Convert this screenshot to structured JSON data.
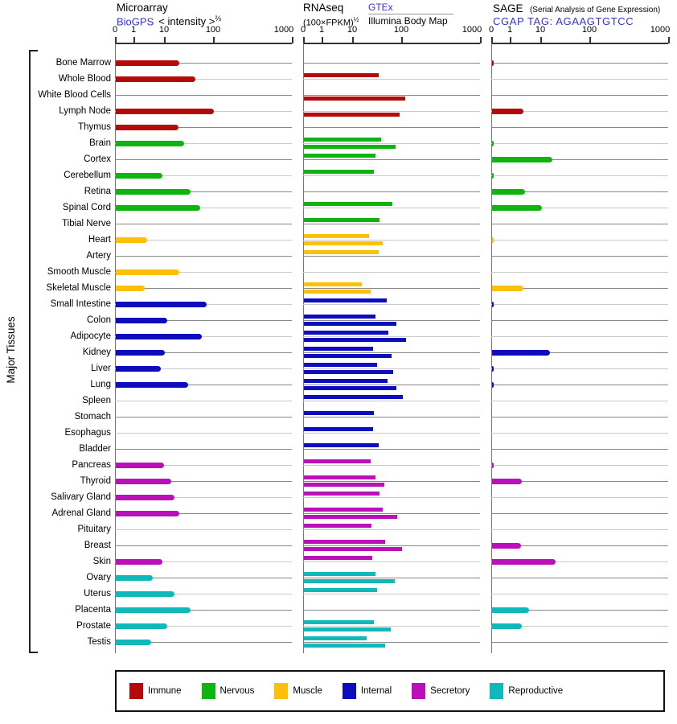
{
  "y_axis_label": "Major Tissues",
  "panels": [
    {
      "title": "Microarray",
      "link": "BioGPS",
      "subtitle": "< intensity >",
      "sup": "⅔"
    },
    {
      "title": "RNAseq",
      "formula": "(100×FPKM)",
      "sup": "½",
      "link": "GTEx",
      "link2": "Illumina Body Map"
    },
    {
      "title": "SAGE",
      "note": "(Serial Analysis of Gene Expression)",
      "link": "CGAP TAG: AGAAGTGTCC"
    }
  ],
  "legend": {
    "items": [
      {
        "label": "Immune",
        "category": "immune"
      },
      {
        "label": "Nervous",
        "category": "nervous"
      },
      {
        "label": "Muscle",
        "category": "muscle"
      },
      {
        "label": "Internal",
        "category": "internal"
      },
      {
        "label": "Secretory",
        "category": "secretory"
      },
      {
        "label": "Reproductive",
        "category": "reproductive"
      }
    ]
  },
  "chart_data": {
    "type": "bar",
    "orientation": "horizontal",
    "x_scale": "expanding log scale, tick anchors 0 / 1 / 10 / 100 / 1000",
    "x_ticks": [
      0,
      1,
      10,
      100,
      1000
    ],
    "x_tick_labels": [
      "0",
      "1",
      "10",
      "100",
      "1000"
    ],
    "panel_series": [
      "Microarray (BioGPS intensity)",
      "RNAseq GTEx",
      "RNAseq Illumina Body Map",
      "SAGE (CGAP tag AGAAGTGTCC)"
    ],
    "category_colors": {
      "immune": "#b40a0a",
      "nervous": "#10b410",
      "muscle": "#fdc008",
      "internal": "#0d0dbe",
      "secretory": "#ba10ba",
      "reproductive": "#10b9b9"
    },
    "rows": [
      {
        "tissue": "Bone Marrow",
        "category": "immune",
        "microarray": 20,
        "rnaseq_gtex": null,
        "rnaseq_illumina": null,
        "sage": 0.1
      },
      {
        "tissue": "Whole Blood",
        "category": "immune",
        "microarray": 42,
        "rnaseq_gtex": 34,
        "rnaseq_illumina": null,
        "sage": null
      },
      {
        "tissue": "White Blood Cells",
        "category": "immune",
        "microarray": null,
        "rnaseq_gtex": null,
        "rnaseq_illumina": 110,
        "sage": null
      },
      {
        "tissue": "Lymph Node",
        "category": "immune",
        "microarray": 100,
        "rnaseq_gtex": null,
        "rnaseq_illumina": 90,
        "sage": 2.7
      },
      {
        "tissue": "Thymus",
        "category": "immune",
        "microarray": 19,
        "rnaseq_gtex": null,
        "rnaseq_illumina": null,
        "sage": null
      },
      {
        "tissue": "Brain",
        "category": "nervous",
        "microarray": 25,
        "rnaseq_gtex": 38,
        "rnaseq_illumina": 74,
        "sage": 0.1
      },
      {
        "tissue": "Cortex",
        "category": "nervous",
        "microarray": null,
        "rnaseq_gtex": 29,
        "rnaseq_illumina": null,
        "sage": 17
      },
      {
        "tissue": "Cerebellum",
        "category": "nervous",
        "microarray": 8.5,
        "rnaseq_gtex": 27,
        "rnaseq_illumina": null,
        "sage": 0.1
      },
      {
        "tissue": "Retina",
        "category": "nervous",
        "microarray": 33,
        "rnaseq_gtex": null,
        "rnaseq_illumina": null,
        "sage": 2.9
      },
      {
        "tissue": "Spinal Cord",
        "category": "nervous",
        "microarray": 52,
        "rnaseq_gtex": 63,
        "rnaseq_illumina": null,
        "sage": 10.5
      },
      {
        "tissue": "Tibial Nerve",
        "category": "nervous",
        "microarray": null,
        "rnaseq_gtex": 35,
        "rnaseq_illumina": null,
        "sage": null
      },
      {
        "tissue": "Heart",
        "category": "muscle",
        "microarray": 2.6,
        "rnaseq_gtex": 21,
        "rnaseq_illumina": 41,
        "sage": 0.1
      },
      {
        "tissue": "Artery",
        "category": "muscle",
        "microarray": null,
        "rnaseq_gtex": 33,
        "rnaseq_illumina": null,
        "sage": null
      },
      {
        "tissue": "Smooth Muscle",
        "category": "muscle",
        "microarray": 20,
        "rnaseq_gtex": null,
        "rnaseq_illumina": null,
        "sage": null
      },
      {
        "tissue": "Skeletal Muscle",
        "category": "muscle",
        "microarray": 2.2,
        "rnaseq_gtex": 15,
        "rnaseq_illumina": 23,
        "sage": 2.7
      },
      {
        "tissue": "Small Intestine",
        "category": "internal",
        "microarray": 71,
        "rnaseq_gtex": 48,
        "rnaseq_illumina": null,
        "sage": 0.1
      },
      {
        "tissue": "Colon",
        "category": "internal",
        "microarray": 11,
        "rnaseq_gtex": 29,
        "rnaseq_illumina": 76,
        "sage": null
      },
      {
        "tissue": "Adipocyte",
        "category": "internal",
        "microarray": 57,
        "rnaseq_gtex": 52,
        "rnaseq_illumina": 112,
        "sage": null
      },
      {
        "tissue": "Kidney",
        "category": "internal",
        "microarray": 10,
        "rnaseq_gtex": 26,
        "rnaseq_illumina": 61,
        "sage": 15
      },
      {
        "tissue": "Liver",
        "category": "internal",
        "microarray": 7.5,
        "rnaseq_gtex": 31,
        "rnaseq_illumina": 66,
        "sage": 0.1
      },
      {
        "tissue": "Lung",
        "category": "internal",
        "microarray": 30,
        "rnaseq_gtex": 50,
        "rnaseq_illumina": 76,
        "sage": 0.1
      },
      {
        "tissue": "Spleen",
        "category": "internal",
        "microarray": null,
        "rnaseq_gtex": 102,
        "rnaseq_illumina": null,
        "sage": null
      },
      {
        "tissue": "Stomach",
        "category": "internal",
        "microarray": null,
        "rnaseq_gtex": 27,
        "rnaseq_illumina": null,
        "sage": null
      },
      {
        "tissue": "Esophagus",
        "category": "internal",
        "microarray": null,
        "rnaseq_gtex": 26,
        "rnaseq_illumina": null,
        "sage": null
      },
      {
        "tissue": "Bladder",
        "category": "internal",
        "microarray": null,
        "rnaseq_gtex": 33,
        "rnaseq_illumina": null,
        "sage": null
      },
      {
        "tissue": "Pancreas",
        "category": "secretory",
        "microarray": 9.5,
        "rnaseq_gtex": 23,
        "rnaseq_illumina": null,
        "sage": 0.1
      },
      {
        "tissue": "Thyroid",
        "category": "secretory",
        "microarray": 13.5,
        "rnaseq_gtex": 29,
        "rnaseq_illumina": 43,
        "sage": 2.3
      },
      {
        "tissue": "Salivary Gland",
        "category": "secretory",
        "microarray": 16,
        "rnaseq_gtex": 35,
        "rnaseq_illumina": null,
        "sage": null
      },
      {
        "tissue": "Adrenal Gland",
        "category": "secretory",
        "microarray": 20,
        "rnaseq_gtex": 41,
        "rnaseq_illumina": 79,
        "sage": null
      },
      {
        "tissue": "Pituitary",
        "category": "secretory",
        "microarray": null,
        "rnaseq_gtex": 24,
        "rnaseq_illumina": null,
        "sage": null
      },
      {
        "tissue": "Breast",
        "category": "secretory",
        "microarray": null,
        "rnaseq_gtex": 45,
        "rnaseq_illumina": 100,
        "sage": 2.2
      },
      {
        "tissue": "Skin",
        "category": "secretory",
        "microarray": 8.5,
        "rnaseq_gtex": 25,
        "rnaseq_illumina": null,
        "sage": 20
      },
      {
        "tissue": "Ovary",
        "category": "reproductive",
        "microarray": 4,
        "rnaseq_gtex": 29,
        "rnaseq_illumina": 70,
        "sage": null
      },
      {
        "tissue": "Uterus",
        "category": "reproductive",
        "microarray": 16,
        "rnaseq_gtex": 31,
        "rnaseq_illumina": null,
        "sage": null
      },
      {
        "tissue": "Placenta",
        "category": "reproductive",
        "microarray": 34,
        "rnaseq_gtex": null,
        "rnaseq_illumina": null,
        "sage": 4
      },
      {
        "tissue": "Prostate",
        "category": "reproductive",
        "microarray": 11,
        "rnaseq_gtex": 27,
        "rnaseq_illumina": 58,
        "sage": 2.3
      },
      {
        "tissue": "Testis",
        "category": "reproductive",
        "microarray": 3.6,
        "rnaseq_gtex": 19,
        "rnaseq_illumina": 45,
        "sage": null
      }
    ]
  }
}
